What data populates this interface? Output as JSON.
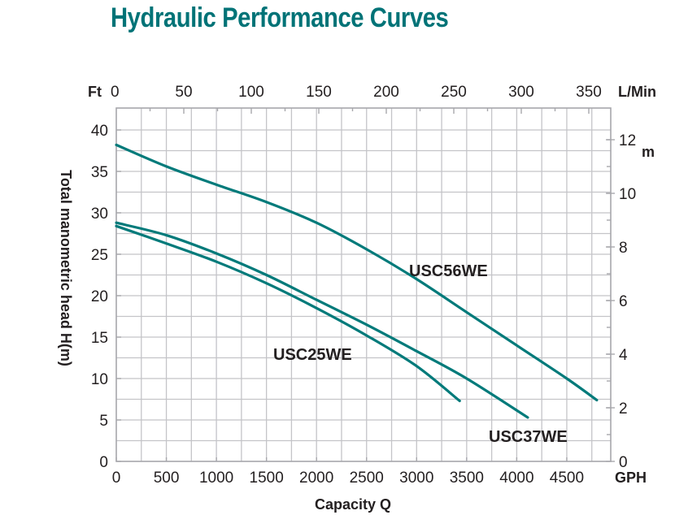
{
  "title": "Hydraulic Performance Curves",
  "chart_data": {
    "type": "line",
    "title": "Hydraulic Performance Curves",
    "xlabel": "Capacity Q",
    "ylabel": "Total manometric head H(m)",
    "x_unit": "GPH",
    "y_left_unit": "Ft",
    "y_right_unit": "m",
    "x_top_unit": "L/Min",
    "xlim": [
      0,
      4870
    ],
    "ylim": [
      0,
      42.5
    ],
    "x_ticks": [
      0,
      500,
      1000,
      1500,
      2000,
      2500,
      3000,
      3500,
      4000,
      4500
    ],
    "x_tick_labels": [
      "0",
      "500",
      "1000",
      "1500",
      "2000",
      "2500",
      "3000",
      "3500",
      "4000",
      "4500"
    ],
    "x_top_ticks": [
      0,
      50,
      100,
      150,
      200,
      250,
      300,
      350
    ],
    "x_top_tick_labels": [
      "0",
      "50",
      "100",
      "150",
      "200",
      "250",
      "300",
      "350"
    ],
    "y_left_ticks": [
      0,
      5,
      10,
      15,
      20,
      25,
      30,
      35,
      40
    ],
    "y_left_tick_labels": [
      "0",
      "5",
      "10",
      "15",
      "20",
      "25",
      "30",
      "35",
      "40"
    ],
    "y_right_ticks": [
      0,
      2,
      4,
      6,
      8,
      10,
      12
    ],
    "y_right_tick_labels": [
      "0",
      "2",
      "4",
      "6",
      "8",
      "10",
      "12"
    ],
    "grid": true,
    "color": "#007a7a",
    "series": [
      {
        "name": "USC56WE",
        "x": [
          0,
          500,
          1000,
          1500,
          2000,
          2500,
          3000,
          3500,
          4000,
          4500,
          4800
        ],
        "y": [
          38.2,
          35.6,
          33.4,
          31.3,
          28.8,
          25.6,
          22.0,
          18.0,
          14.0,
          10.0,
          7.4
        ]
      },
      {
        "name": "USC37WE",
        "x": [
          0,
          500,
          1000,
          1500,
          2000,
          2500,
          3000,
          3500,
          4110
        ],
        "y": [
          28.8,
          27.3,
          25.1,
          22.5,
          19.5,
          16.5,
          13.3,
          10.0,
          5.3
        ]
      },
      {
        "name": "USC25WE",
        "x": [
          0,
          500,
          1000,
          1500,
          2000,
          2500,
          3000,
          3430
        ],
        "y": [
          28.4,
          26.3,
          24.1,
          21.5,
          18.5,
          15.2,
          11.5,
          7.3
        ]
      }
    ]
  }
}
